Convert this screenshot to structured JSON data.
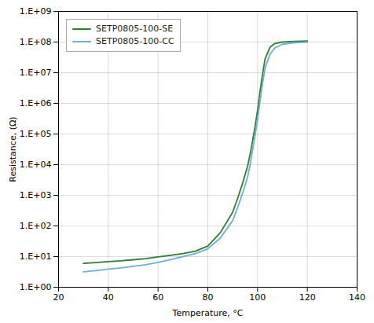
{
  "chart_data": {
    "type": "line",
    "xlabel": "Temperature, °C",
    "ylabel": "Resistance, (Ω)",
    "x": [
      30,
      35,
      40,
      45,
      50,
      55,
      60,
      65,
      70,
      75,
      80,
      85,
      90,
      92,
      94,
      96,
      97,
      98,
      99,
      100,
      101,
      102,
      103,
      105,
      107,
      110,
      115,
      120
    ],
    "series": [
      {
        "name": "SETP0805-100-SE",
        "color": "#2e7d32",
        "values": [
          6.0,
          6.4,
          6.9,
          7.3,
          7.9,
          8.6,
          9.8,
          11.0,
          12.5,
          15.0,
          22.0,
          60.0,
          280.0,
          800.0,
          2500.0,
          9000.0,
          22000.0,
          60000.0,
          180000.0,
          600000.0,
          2500000.0,
          9000000.0,
          28000000.0,
          68000000.0,
          90000000.0,
          100000000.0,
          105000000.0,
          108000000.0
        ]
      },
      {
        "name": "SETP0805-100-CC",
        "color": "#6baed6",
        "values": [
          3.2,
          3.5,
          3.9,
          4.3,
          4.8,
          5.4,
          6.5,
          8.0,
          10.0,
          12.5,
          18.0,
          40.0,
          150.0,
          400.0,
          1200.0,
          4000.0,
          10000.0,
          30000.0,
          90000.0,
          300000.0,
          1200000.0,
          4500000.0,
          14000000.0,
          40000000.0,
          65000000.0,
          85000000.0,
          95000000.0,
          100000000.0
        ]
      }
    ],
    "xlim": [
      20,
      140
    ],
    "xticks": [
      20,
      40,
      60,
      80,
      100,
      120,
      140
    ],
    "ylim": [
      1,
      1000000000
    ],
    "yticks": [
      {
        "value": 1,
        "label": "1.E+00"
      },
      {
        "value": 10,
        "label": "1.E+01"
      },
      {
        "value": 100,
        "label": "1.E+02"
      },
      {
        "value": 1000,
        "label": "1.E+03"
      },
      {
        "value": 10000,
        "label": "1.E+04"
      },
      {
        "value": 100000,
        "label": "1.E+05"
      },
      {
        "value": 1000000,
        "label": "1.E+06"
      },
      {
        "value": 10000000,
        "label": "1.E+07"
      },
      {
        "value": 100000000,
        "label": "1.E+08"
      },
      {
        "value": 1000000000,
        "label": "1.E+09"
      }
    ],
    "log": "y",
    "grid": true,
    "legend": "upper left"
  }
}
